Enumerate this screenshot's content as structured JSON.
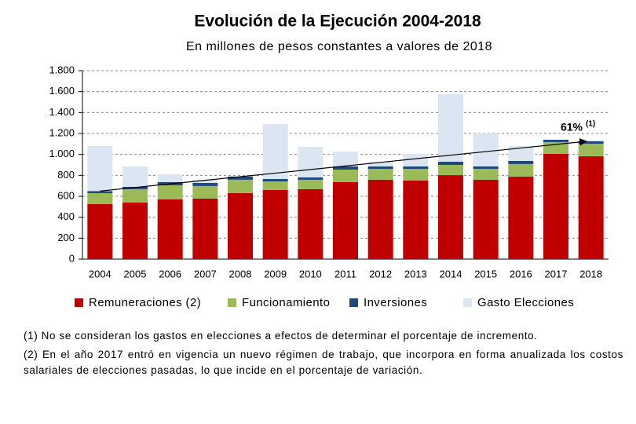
{
  "chart_data": {
    "type": "stacked_bar",
    "title": "Evolución de la Ejecución 2004-2018",
    "subtitle": "En millones de pesos constantes a valores de 2018",
    "categories": [
      "2004",
      "2005",
      "2006",
      "2007",
      "2008",
      "2009",
      "2010",
      "2011",
      "2012",
      "2013",
      "2014",
      "2015",
      "2016",
      "2017",
      "2018"
    ],
    "series": [
      {
        "name": "Remuneraciones (2)",
        "color": "#c00000",
        "values": [
          525,
          540,
          570,
          578,
          630,
          660,
          668,
          735,
          758,
          750,
          802,
          758,
          788,
          1005,
          982
        ]
      },
      {
        "name": "Funcionamiento",
        "color": "#9bbb59",
        "values": [
          105,
          128,
          135,
          120,
          128,
          82,
          90,
          120,
          104,
          112,
          98,
          104,
          120,
          113,
          120
        ]
      },
      {
        "name": "Inversiones",
        "color": "#1f497d",
        "values": [
          20,
          22,
          30,
          30,
          30,
          23,
          22,
          30,
          23,
          23,
          30,
          23,
          30,
          22,
          23
        ]
      },
      {
        "name": "Gasto Elecciones",
        "color": "#dce6f2",
        "values": [
          430,
          195,
          75,
          30,
          7,
          525,
          292,
          143,
          45,
          120,
          645,
          315,
          142,
          0,
          10
        ]
      }
    ],
    "ylim": [
      0,
      1800
    ],
    "yticks": [
      0,
      200,
      400,
      600,
      800,
      {
        "value": 1000,
        "label": "1.000"
      },
      {
        "value": 1200,
        "label": "1.200"
      },
      {
        "value": 1400,
        "label": "1.400"
      },
      {
        "value": 1600,
        "label": "1.600"
      },
      {
        "value": 1800,
        "label": "1.800"
      }
    ],
    "grid": true,
    "annotation": "61%",
    "annotation_note": "(1)",
    "notes": [
      "(1)  No se consideran los gastos en elecciones a efectos de determinar el porcentaje de incremento.",
      "(2)  En el año 2017 entró en vigencia un nuevo régimen de trabajo, que incorpora en forma anualizada los costos salariales de elecciones pasadas, lo que incide en el porcentaje de variación."
    ]
  }
}
